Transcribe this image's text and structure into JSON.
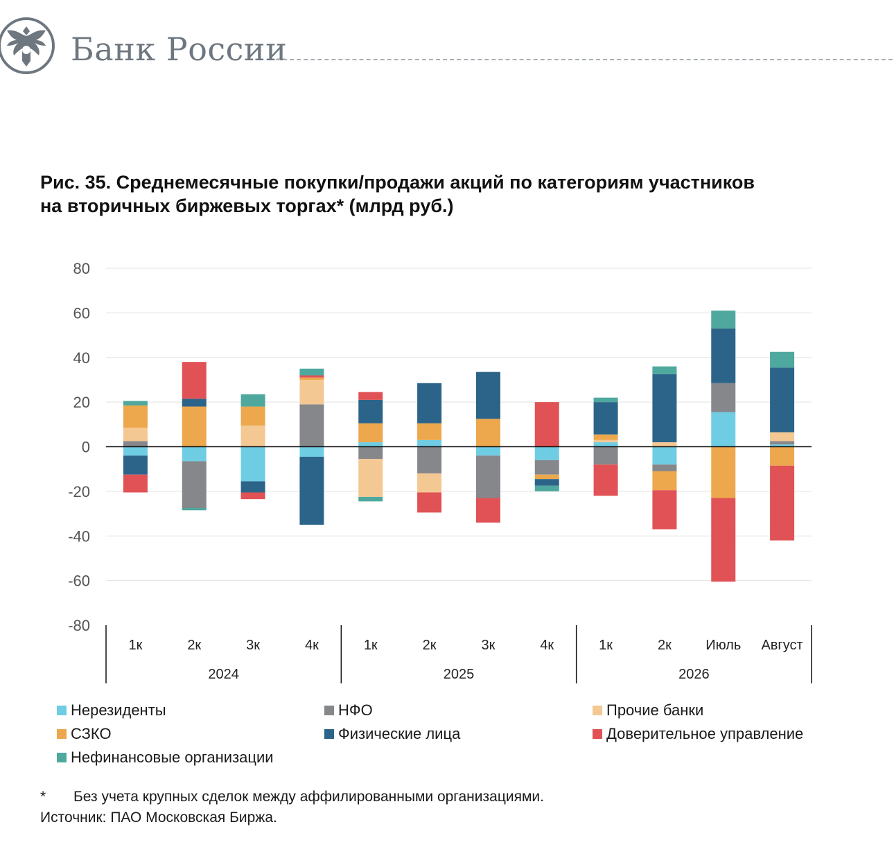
{
  "header": {
    "bank_name": "Банк России",
    "logo_icon": "double-headed-eagle-icon"
  },
  "title": {
    "line1": "Рис. 35. Среднемесячные покупки/продажи акций по категориям участников",
    "line2": "на вторичных биржевых торгах* (млрд руб.)"
  },
  "chart_data": {
    "type": "bar",
    "stacked": true,
    "categories": [
      "1к",
      "2к",
      "3к",
      "4к",
      "1к",
      "2к",
      "3к",
      "4к",
      "1к",
      "2к",
      "Июль",
      "Август"
    ],
    "groups": [
      {
        "label": "2024",
        "categories": 4
      },
      {
        "label": "2025",
        "categories": 4
      },
      {
        "label": "2026",
        "categories": 4
      }
    ],
    "ylim": [
      -80,
      80
    ],
    "yticks": [
      80,
      60,
      40,
      20,
      0,
      -20,
      -40,
      -60,
      -80
    ],
    "grid": true,
    "legend_position": "bottom",
    "series": [
      {
        "name": "Нерезиденты",
        "color": "#6fcde3",
        "values": [
          -4,
          -6.5,
          -15.5,
          -4.5,
          2,
          3,
          -4,
          -6,
          2,
          -8,
          15.5,
          1
        ]
      },
      {
        "name": "НФО",
        "color": "#85878b",
        "values": [
          2.5,
          -21,
          0,
          19,
          -5.5,
          -12,
          -19,
          -6.5,
          -8,
          -3,
          13,
          1.5
        ]
      },
      {
        "name": "Прочие банки",
        "color": "#f4c893",
        "values": [
          6,
          0,
          9.5,
          11,
          -17,
          -8.5,
          0,
          0,
          1,
          2,
          0,
          4
        ]
      },
      {
        "name": "СЗКО",
        "color": "#eda74c",
        "values": [
          10,
          18,
          8.5,
          1,
          8.5,
          7.5,
          12.5,
          -2,
          2.5,
          -8.5,
          -23,
          -8.5
        ]
      },
      {
        "name": "Физические лица",
        "color": "#2c6489",
        "values": [
          -8.5,
          3.5,
          -5,
          -30.5,
          10.5,
          18,
          21,
          -3,
          14.5,
          30.5,
          24.5,
          29
        ]
      },
      {
        "name": "Доверительное управление",
        "color": "#e05255",
        "values": [
          -8,
          16.5,
          -3,
          1,
          3.5,
          -9,
          -11,
          20,
          -14,
          -17.5,
          -37.5,
          -33.5
        ]
      },
      {
        "name": "Нефинансовые организации",
        "color": "#4ea89e",
        "values": [
          2,
          -1,
          5.5,
          3,
          -2,
          0,
          0,
          -2.5,
          2,
          3.5,
          8,
          7
        ]
      }
    ]
  },
  "footnote": {
    "marker": "*",
    "text": "Без учета крупных сделок между аффилированными организациями."
  },
  "source": "Источник: ПАО Московская Биржа."
}
